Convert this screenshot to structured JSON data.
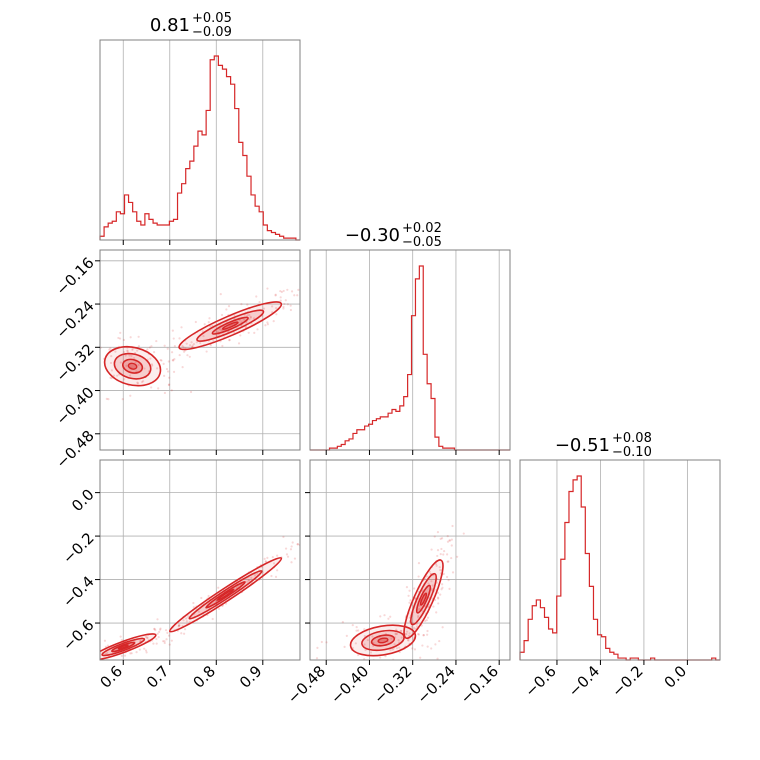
{
  "chart_data": {
    "type": "corner",
    "color": "#d62728",
    "parameters": [
      {
        "title_value": "0.81",
        "title_plus": "+0.05",
        "title_minus": "−0.09",
        "range": [
          0.55,
          0.98
        ],
        "ticks": [
          0.6,
          0.7,
          0.8,
          0.9
        ],
        "tick_labels": [
          "0.6",
          "0.7",
          "0.8",
          "0.9"
        ],
        "histogram": {
          "bins": [
            0.55,
            0.5588,
            0.5676,
            0.5763,
            0.5851,
            0.5939,
            0.6027,
            0.6114,
            0.6202,
            0.629,
            0.6378,
            0.6465,
            0.6553,
            0.6641,
            0.6729,
            0.6816,
            0.6904,
            0.6992,
            0.708,
            0.7167,
            0.7255,
            0.7343,
            0.7431,
            0.7518,
            0.7606,
            0.7694,
            0.7782,
            0.7869,
            0.7957,
            0.8045,
            0.8133,
            0.822,
            0.8308,
            0.8396,
            0.8484,
            0.8571,
            0.8659,
            0.8747,
            0.8835,
            0.8922,
            0.901,
            0.9098,
            0.9186,
            0.9273,
            0.9361,
            0.9449,
            0.9537,
            0.9624,
            0.9712,
            0.98
          ],
          "heights": [
            0.02,
            0.07,
            0.09,
            0.1,
            0.15,
            0.14,
            0.24,
            0.2,
            0.15,
            0.1,
            0.08,
            0.14,
            0.11,
            0.09,
            0.08,
            0.08,
            0.08,
            0.1,
            0.11,
            0.25,
            0.3,
            0.38,
            0.42,
            0.5,
            0.58,
            0.56,
            0.69,
            0.96,
            0.98,
            0.93,
            0.91,
            0.87,
            0.83,
            0.7,
            0.52,
            0.45,
            0.34,
            0.24,
            0.18,
            0.15,
            0.08,
            0.05,
            0.04,
            0.03,
            0.02,
            0.01,
            0.01,
            0.01,
            0.0
          ]
        }
      },
      {
        "title_value": "−0.30",
        "title_plus": "+0.02",
        "title_minus": "−0.05",
        "range": [
          -0.51,
          -0.14
        ],
        "ticks": [
          -0.48,
          -0.4,
          -0.32,
          -0.24,
          -0.16
        ],
        "tick_labels": [
          "−0.48",
          "−0.40",
          "−0.32",
          "−0.24",
          "−0.16"
        ],
        "histogram": {
          "bins": [
            -0.51,
            -0.5028,
            -0.4956,
            -0.4883,
            -0.4811,
            -0.4739,
            -0.4667,
            -0.4594,
            -0.4522,
            -0.445,
            -0.4378,
            -0.4305,
            -0.4233,
            -0.4161,
            -0.4089,
            -0.4016,
            -0.3944,
            -0.3872,
            -0.38,
            -0.3727,
            -0.3655,
            -0.3583,
            -0.3511,
            -0.3438,
            -0.3366,
            -0.3294,
            -0.3222,
            -0.3149,
            -0.3077,
            -0.3005,
            -0.2933,
            -0.286,
            -0.2788,
            -0.2716,
            -0.2644,
            -0.2571,
            -0.2499,
            -0.2427,
            -0.2355,
            -0.2282,
            -0.221,
            -0.2138,
            -0.2066,
            -0.1993,
            -0.1921,
            -0.1849,
            -0.1777,
            -0.1704,
            -0.1632,
            -0.14
          ],
          "heights": [
            0.0,
            0.0,
            0.0,
            0.0,
            0.0,
            0.01,
            0.01,
            0.02,
            0.03,
            0.05,
            0.06,
            0.09,
            0.11,
            0.11,
            0.13,
            0.14,
            0.16,
            0.17,
            0.18,
            0.18,
            0.2,
            0.22,
            0.21,
            0.24,
            0.29,
            0.41,
            0.73,
            0.93,
            1.0,
            0.52,
            0.36,
            0.28,
            0.07,
            0.02,
            0.01,
            0.01,
            0.01,
            0.0,
            0.0,
            0.0,
            0.0,
            0.0,
            0.0,
            0.0,
            0.0,
            0.0,
            0.0,
            0.0,
            0.0
          ]
        }
      },
      {
        "title_value": "−0.51",
        "title_plus": "+0.08",
        "title_minus": "−0.10",
        "range": [
          -0.77,
          0.15
        ],
        "ticks": [
          -0.6,
          -0.4,
          -0.2,
          0.0
        ],
        "tick_labels": [
          "−0.6",
          "−0.4",
          "−0.2",
          "0.0"
        ],
        "histogram": {
          "bins": [
            -0.77,
            -0.7512,
            -0.7324,
            -0.7137,
            -0.6949,
            -0.6761,
            -0.6573,
            -0.6386,
            -0.6198,
            -0.601,
            -0.5822,
            -0.5635,
            -0.5447,
            -0.5259,
            -0.5071,
            -0.4884,
            -0.4696,
            -0.4508,
            -0.432,
            -0.4133,
            -0.3945,
            -0.3757,
            -0.3569,
            -0.3382,
            -0.3194,
            -0.3006,
            -0.2818,
            -0.2631,
            -0.2443,
            -0.2255,
            -0.2067,
            -0.188,
            -0.1692,
            -0.1504,
            -0.1316,
            -0.1129,
            -0.0941,
            -0.0753,
            -0.0565,
            -0.0378,
            -0.019,
            0.0,
            0.0186,
            0.0373,
            0.0559,
            0.0745,
            0.0931,
            0.1118,
            0.1304,
            0.15
          ],
          "heights": [
            0.04,
            0.1,
            0.21,
            0.28,
            0.31,
            0.27,
            0.22,
            0.16,
            0.14,
            0.33,
            0.52,
            0.71,
            0.87,
            0.93,
            0.95,
            0.79,
            0.55,
            0.38,
            0.21,
            0.13,
            0.12,
            0.06,
            0.04,
            0.03,
            0.01,
            0.01,
            0.0,
            0.01,
            0.01,
            0.0,
            0.0,
            0.0,
            0.01,
            0.0,
            0.0,
            0.0,
            0.0,
            0.0,
            0.0,
            0.0,
            0.0,
            0.0,
            0.0,
            0.0,
            0.0,
            0.0,
            0.0,
            0.01,
            0.0
          ]
        }
      }
    ],
    "pairs": [
      {
        "x_param": 0,
        "y_param": 1,
        "modes": [
          {
            "x": 0.83,
            "y": -0.28,
            "sx": 0.055,
            "sy": 0.022,
            "rho": 0.9,
            "w": 1.0
          },
          {
            "x": 0.62,
            "y": -0.355,
            "sx": 0.03,
            "sy": 0.018,
            "rho": -0.2,
            "w": 0.35
          }
        ],
        "scatter_n": 260
      },
      {
        "x_param": 0,
        "y_param": 2,
        "modes": [
          {
            "x": 0.82,
            "y": -0.47,
            "sx": 0.06,
            "sy": 0.085,
            "rho": 0.98,
            "w": 1.0
          },
          {
            "x": 0.6,
            "y": -0.71,
            "sx": 0.035,
            "sy": 0.03,
            "rho": 0.9,
            "w": 0.3
          }
        ],
        "scatter_n": 240
      },
      {
        "x_param": 1,
        "y_param": 2,
        "modes": [
          {
            "x": -0.3,
            "y": -0.49,
            "sx": 0.018,
            "sy": 0.09,
            "rho": 0.85,
            "w": 1.0
          },
          {
            "x": -0.375,
            "y": -0.68,
            "sx": 0.03,
            "sy": 0.035,
            "rho": 0.3,
            "w": 0.45
          }
        ],
        "scatter_n": 260
      }
    ]
  }
}
